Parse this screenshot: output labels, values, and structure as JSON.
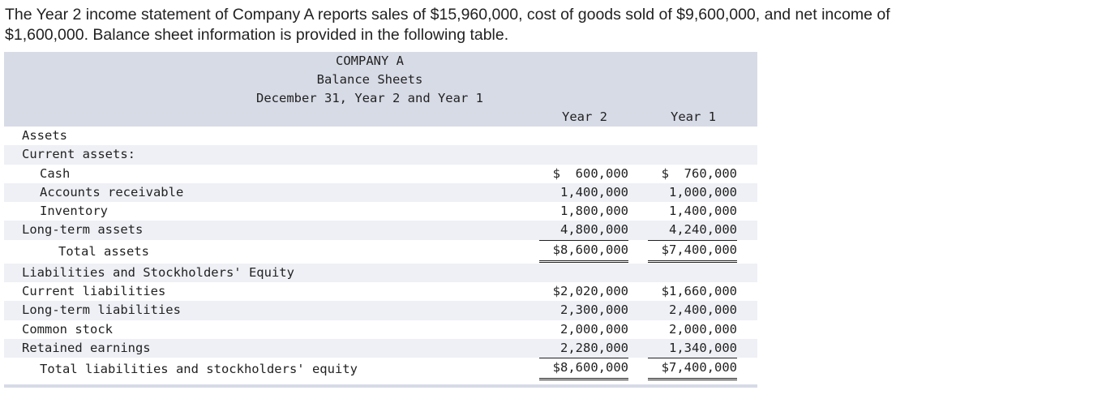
{
  "intro": {
    "line1": "The Year 2 income statement of Company A reports sales of $15,960,000, cost of goods sold of $9,600,000, and net income of",
    "line2": "$1,600,000. Balance sheet information is provided in the following table."
  },
  "sheet": {
    "title": "COMPANY A",
    "subtitle": "Balance Sheets",
    "date_line": "December 31, Year 2 and Year 1",
    "col_year2": "Year 2",
    "col_year1": "Year 1",
    "rows": [
      {
        "label": "Assets",
        "y2": "",
        "y1": ""
      },
      {
        "label": "Current assets:",
        "y2": "",
        "y1": ""
      },
      {
        "label": "Cash",
        "y2": "$  600,000",
        "y1": "$  760,000"
      },
      {
        "label": "Accounts receivable",
        "y2": "1,400,000",
        "y1": "1,000,000"
      },
      {
        "label": "Inventory",
        "y2": "1,800,000",
        "y1": "1,400,000"
      },
      {
        "label": "Long-term assets",
        "y2": "4,800,000",
        "y1": "4,240,000"
      },
      {
        "label": "Total assets",
        "y2": "$8,600,000",
        "y1": "$7,400,000"
      },
      {
        "label": "Liabilities and Stockholders' Equity",
        "y2": "",
        "y1": ""
      },
      {
        "label": "Current liabilities",
        "y2": "$2,020,000",
        "y1": "$1,660,000"
      },
      {
        "label": "Long-term liabilities",
        "y2": "2,300,000",
        "y1": "2,400,000"
      },
      {
        "label": "Common stock",
        "y2": "2,000,000",
        "y1": "2,000,000"
      },
      {
        "label": "Retained earnings",
        "y2": "2,280,000",
        "y1": "1,340,000"
      },
      {
        "label": "Total liabilities and stockholders' equity",
        "y2": "$8,600,000",
        "y1": "$7,400,000"
      }
    ]
  }
}
